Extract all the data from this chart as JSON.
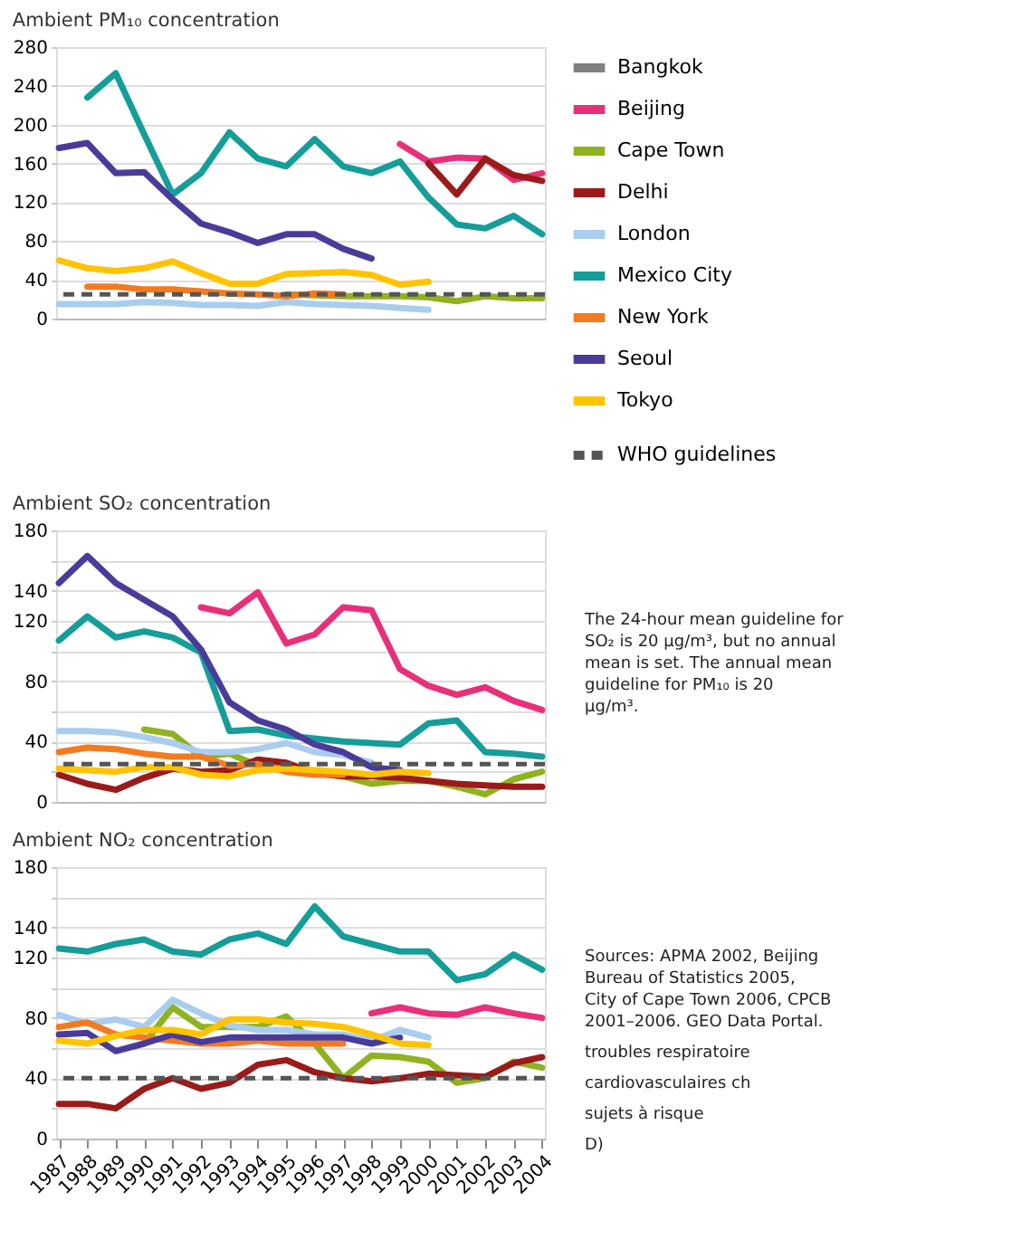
{
  "chart_data": [
    {
      "type": "line",
      "title": "Ambient PM₁₀ concentration",
      "categories": [
        "1987",
        "1988",
        "1989",
        "1990",
        "1991",
        "1992",
        "1993",
        "1994",
        "1995",
        "1996",
        "1997",
        "1998",
        "1999",
        "2000",
        "2001",
        "2002",
        "2003",
        "2004"
      ],
      "ylim": [
        0,
        280
      ],
      "yticks": [
        0,
        40,
        80,
        120,
        160,
        200,
        240,
        280
      ],
      "grid": "y",
      "tick_labels": "y",
      "legend": "right",
      "series": [
        {
          "name": "Bangkok",
          "color": "#808080",
          "values": [
            null,
            null,
            null,
            null,
            null,
            null,
            null,
            null,
            null,
            null,
            null,
            null,
            null,
            null,
            null,
            null,
            null,
            null
          ]
        },
        {
          "name": "Beijing",
          "color": "#e8307a",
          "values": [
            null,
            null,
            null,
            null,
            null,
            null,
            null,
            null,
            null,
            null,
            null,
            null,
            180,
            162,
            166,
            165,
            143,
            150
          ]
        },
        {
          "name": "Cape Town",
          "color": "#8fb320",
          "values": [
            null,
            null,
            null,
            null,
            null,
            null,
            null,
            null,
            25,
            24,
            23,
            23,
            23,
            22,
            18,
            23,
            21,
            21
          ]
        },
        {
          "name": "Delhi",
          "color": "#9b1a1a",
          "values": [
            null,
            null,
            null,
            null,
            null,
            null,
            null,
            null,
            null,
            null,
            null,
            null,
            null,
            160,
            128,
            165,
            148,
            142
          ]
        },
        {
          "name": "London",
          "color": "#a9cdef",
          "values": [
            15,
            15,
            15,
            17,
            16,
            14,
            14,
            13,
            17,
            15,
            14,
            13,
            11,
            9,
            null,
            null,
            null,
            null
          ]
        },
        {
          "name": "Mexico City",
          "color": "#159d9a",
          "values": [
            null,
            228,
            253,
            190,
            128,
            150,
            192,
            165,
            157,
            185,
            157,
            150,
            162,
            125,
            97,
            93,
            106,
            87
          ]
        },
        {
          "name": "New York",
          "color": "#f47a20",
          "values": [
            null,
            33,
            33,
            30,
            30,
            28,
            26,
            25,
            23,
            26,
            25,
            null,
            null,
            null,
            null,
            null,
            null,
            null
          ]
        },
        {
          "name": "Seoul",
          "color": "#4a3b9a",
          "values": [
            176,
            181,
            150,
            151,
            123,
            98,
            89,
            78,
            87,
            87,
            72,
            62,
            null,
            null,
            null,
            null,
            null,
            null
          ]
        },
        {
          "name": "Tokyo",
          "color": "#ffc300",
          "values": [
            60,
            52,
            49,
            52,
            59,
            47,
            36,
            36,
            46,
            47,
            48,
            45,
            35,
            38,
            null,
            null,
            null,
            null
          ]
        }
      ],
      "ref_lines": [
        {
          "axis": "y",
          "value": 25,
          "label": "WHO guidelines",
          "color": "#555555",
          "line_style": "dashed"
        }
      ]
    },
    {
      "type": "line",
      "title": "Ambient SO₂ concentration",
      "categories": [
        "1987",
        "1988",
        "1989",
        "1990",
        "1991",
        "1992",
        "1993",
        "1994",
        "1995",
        "1996",
        "1997",
        "1998",
        "1999",
        "2000",
        "2001",
        "2002",
        "2003",
        "2004"
      ],
      "ylim": [
        0,
        180
      ],
      "yticks": [
        0,
        {
          "value": 20,
          "label": null
        },
        40,
        {
          "value": 60,
          "label": null
        },
        80,
        {
          "value": 100,
          "label": null
        },
        120,
        140,
        {
          "value": 160,
          "label": null
        },
        180
      ],
      "grid": "y",
      "tick_labels": "y",
      "series": [
        {
          "color": "#e8307a",
          "values": [
            null,
            null,
            null,
            null,
            null,
            129,
            125,
            139,
            105,
            111,
            129,
            127,
            88,
            77,
            71,
            76,
            67,
            61
          ]
        },
        {
          "color": "#8fb320",
          "values": [
            null,
            null,
            null,
            48,
            45,
            30,
            32,
            24,
            22,
            19,
            17,
            12,
            14,
            14,
            10,
            5,
            15,
            20
          ]
        },
        {
          "color": "#9b1a1a",
          "values": [
            18,
            12,
            8,
            16,
            22,
            20,
            21,
            28,
            26,
            19,
            17,
            17,
            16,
            14,
            12,
            11,
            10,
            10
          ]
        },
        {
          "color": "#a9cdef",
          "values": [
            47,
            47,
            46,
            43,
            39,
            33,
            33,
            35,
            39,
            33,
            31,
            26,
            null,
            null,
            null,
            null,
            null,
            null
          ]
        },
        {
          "color": "#159d9a",
          "values": [
            107,
            123,
            109,
            113,
            109,
            99,
            47,
            48,
            44,
            42,
            40,
            39,
            38,
            52,
            54,
            33,
            32,
            30
          ]
        },
        {
          "color": "#f47a20",
          "values": [
            33,
            36,
            35,
            32,
            30,
            30,
            24,
            25,
            20,
            18,
            18,
            null,
            null,
            null,
            null,
            null,
            null,
            null
          ]
        },
        {
          "color": "#4a3b9a",
          "values": [
            145,
            163,
            145,
            134,
            123,
            101,
            66,
            54,
            48,
            38,
            33,
            23,
            21,
            null,
            null,
            null,
            null,
            null
          ]
        },
        {
          "color": "#ffc300",
          "values": [
            22,
            21,
            20,
            23,
            23,
            18,
            17,
            21,
            22,
            21,
            20,
            18,
            20,
            19,
            null,
            null,
            null,
            null
          ]
        }
      ],
      "ref_lines": [
        {
          "axis": "y",
          "value": 25,
          "color": "#555555",
          "line_style": "dashed"
        }
      ],
      "annotations": [
        "The 24-hour mean guideline for SO₂ is 20 µg/m³, but no annual mean is set. The annual mean guideline for PM₁₀ is 20 µg/m³."
      ]
    },
    {
      "type": "line",
      "title": "Ambient NO₂ concentration",
      "categories": [
        "1987",
        "1988",
        "1989",
        "1990",
        "1991",
        "1992",
        "1993",
        "1994",
        "1995",
        "1996",
        "1997",
        "1998",
        "1999",
        "2000",
        "2001",
        "2002",
        "2003",
        "2004"
      ],
      "ylim": [
        0,
        180
      ],
      "yticks": [
        0,
        {
          "value": 20,
          "label": null
        },
        40,
        {
          "value": 60,
          "label": null
        },
        80,
        {
          "value": 100,
          "label": null
        },
        120,
        140,
        {
          "value": 160,
          "label": null
        },
        180
      ],
      "grid": "y",
      "series": [
        {
          "color": "#e8307a",
          "values": [
            null,
            null,
            null,
            null,
            null,
            null,
            null,
            null,
            null,
            null,
            null,
            83,
            87,
            83,
            82,
            87,
            83,
            80
          ]
        },
        {
          "color": "#8fb320",
          "values": [
            null,
            null,
            null,
            63,
            87,
            74,
            74,
            74,
            81,
            63,
            40,
            55,
            54,
            51,
            37,
            40,
            51,
            47
          ]
        },
        {
          "color": "#9b1a1a",
          "values": [
            23,
            23,
            20,
            33,
            40,
            33,
            37,
            49,
            52,
            44,
            40,
            38,
            40,
            43,
            42,
            41,
            50,
            54
          ]
        },
        {
          "color": "#a9cdef",
          "values": [
            82,
            76,
            79,
            74,
            92,
            83,
            75,
            72,
            72,
            69,
            69,
            65,
            72,
            67,
            null,
            null,
            null,
            null
          ]
        },
        {
          "color": "#159d9a",
          "values": [
            126,
            124,
            129,
            132,
            124,
            122,
            132,
            136,
            129,
            154,
            134,
            129,
            124,
            124,
            105,
            109,
            122,
            112
          ]
        },
        {
          "color": "#f47a20",
          "values": [
            74,
            77,
            69,
            67,
            65,
            63,
            63,
            65,
            63,
            63,
            63,
            null,
            null,
            null,
            null,
            null,
            null,
            null
          ]
        },
        {
          "color": "#4a3b9a",
          "values": [
            69,
            70,
            58,
            63,
            69,
            64,
            67,
            67,
            67,
            67,
            67,
            63,
            67,
            null,
            null,
            null,
            null,
            null
          ]
        },
        {
          "color": "#ffc300",
          "values": [
            65,
            63,
            68,
            72,
            72,
            69,
            79,
            79,
            77,
            76,
            74,
            69,
            63,
            62,
            null,
            null,
            null,
            null
          ]
        }
      ],
      "ref_lines": [
        {
          "axis": "y",
          "value": 40,
          "color": "#555555",
          "line_style": "dashed"
        }
      ],
      "annotations": [
        "Sources: APMA 2002, Beijing Bureau of Statistics 2005, City of Cape Town 2006, CPCB 2001–2006. GEO Data Portal.",
        "troubles respiratoire",
        "cardiovasculaires ch",
        "sujets à risque",
        "D)"
      ]
    }
  ]
}
